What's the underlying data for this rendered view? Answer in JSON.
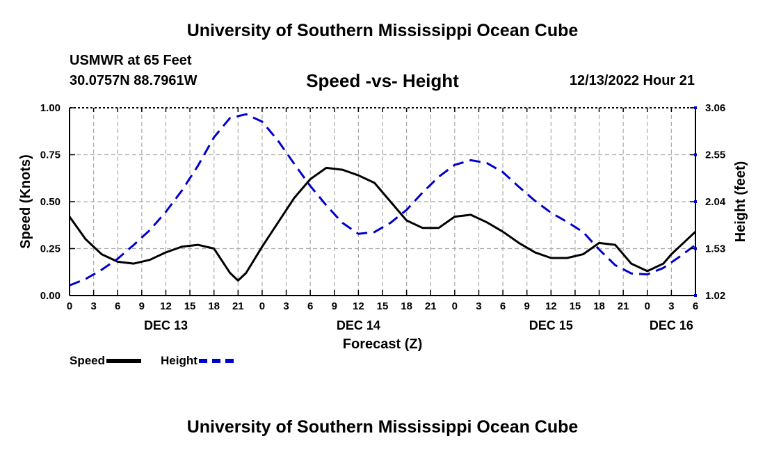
{
  "header": {
    "title": "University of Southern Mississippi Ocean Cube",
    "station": "USMWR at 65 Feet",
    "coordinates": "30.0757N  88.7961W",
    "subtitle": "Speed -vs- Height",
    "datetime": "12/13/2022 Hour 21"
  },
  "footer": {
    "title": "University of Southern Mississippi Ocean Cube"
  },
  "legend": {
    "speed_label": "Speed",
    "height_label": "Height"
  },
  "colors": {
    "speed": "#000000",
    "height": "#0000cc",
    "grid": "#aaaaaa"
  },
  "chart_data": {
    "type": "line",
    "title": "Speed -vs- Height",
    "xlabel": "Forecast (Z)",
    "ylabel": "Speed (Knots)",
    "y2label": "Height (feet)",
    "x_unit": "hours since 12/13 00Z",
    "xlim": [
      0,
      78
    ],
    "ylim": [
      0,
      1
    ],
    "y2lim": [
      1.02,
      3.06
    ],
    "x_ticks": [
      0,
      3,
      6,
      9,
      12,
      15,
      18,
      21,
      24,
      27,
      30,
      33,
      36,
      39,
      42,
      45,
      48,
      51,
      54,
      57,
      60,
      63,
      66,
      69,
      72,
      75,
      78
    ],
    "x_tick_labels": [
      "0",
      "3",
      "6",
      "9",
      "12",
      "15",
      "18",
      "21",
      "0",
      "3",
      "6",
      "9",
      "12",
      "15",
      "18",
      "21",
      "0",
      "3",
      "6",
      "9",
      "12",
      "15",
      "18",
      "21",
      "0",
      "3",
      "6"
    ],
    "date_labels": [
      {
        "label": "DEC 13",
        "x": 12
      },
      {
        "label": "DEC 14",
        "x": 36
      },
      {
        "label": "DEC 15",
        "x": 60
      },
      {
        "label": "DEC 16",
        "x": 75
      }
    ],
    "y_ticks": [
      0.0,
      0.25,
      0.5,
      0.75,
      1.0
    ],
    "y_tick_labels": [
      "0.00",
      "0.25",
      "0.50",
      "0.75",
      "1.00"
    ],
    "y2_ticks": [
      1.02,
      1.53,
      2.04,
      2.55,
      3.06
    ],
    "y2_tick_labels": [
      "1.02",
      "1.53",
      "2.04",
      "2.55",
      "3.06"
    ],
    "grid": true,
    "series": [
      {
        "name": "Speed",
        "axis": "left",
        "style": "solid",
        "x": [
          0,
          2,
          4,
          6,
          8,
          10,
          12,
          14,
          16,
          18,
          20,
          21,
          22,
          24,
          26,
          28,
          30,
          32,
          34,
          36,
          38,
          40,
          42,
          44,
          46,
          48,
          50,
          52,
          54,
          56,
          58,
          60,
          62,
          64,
          66,
          68,
          70,
          72,
          74,
          75,
          76,
          78
        ],
        "values": [
          0.42,
          0.3,
          0.22,
          0.18,
          0.17,
          0.19,
          0.23,
          0.26,
          0.27,
          0.25,
          0.12,
          0.08,
          0.12,
          0.26,
          0.39,
          0.52,
          0.62,
          0.68,
          0.67,
          0.64,
          0.6,
          0.5,
          0.4,
          0.36,
          0.36,
          0.42,
          0.43,
          0.39,
          0.34,
          0.28,
          0.23,
          0.2,
          0.2,
          0.22,
          0.28,
          0.27,
          0.17,
          0.13,
          0.17,
          0.22,
          0.26,
          0.34
        ]
      },
      {
        "name": "Height",
        "axis": "right",
        "style": "dashed",
        "x": [
          0,
          2,
          4,
          6,
          8,
          10,
          12,
          14,
          16,
          18,
          20,
          22,
          24,
          26,
          28,
          30,
          32,
          34,
          36,
          38,
          40,
          42,
          44,
          46,
          48,
          50,
          52,
          54,
          56,
          58,
          60,
          62,
          64,
          66,
          68,
          70,
          72,
          74,
          76,
          78
        ],
        "values": [
          1.13,
          1.2,
          1.3,
          1.42,
          1.57,
          1.73,
          1.93,
          2.16,
          2.43,
          2.74,
          2.95,
          2.99,
          2.91,
          2.7,
          2.45,
          2.21,
          2.0,
          1.81,
          1.69,
          1.71,
          1.81,
          1.95,
          2.14,
          2.31,
          2.44,
          2.49,
          2.46,
          2.36,
          2.2,
          2.05,
          1.92,
          1.82,
          1.71,
          1.52,
          1.35,
          1.26,
          1.25,
          1.32,
          1.44,
          1.57
        ]
      }
    ]
  }
}
